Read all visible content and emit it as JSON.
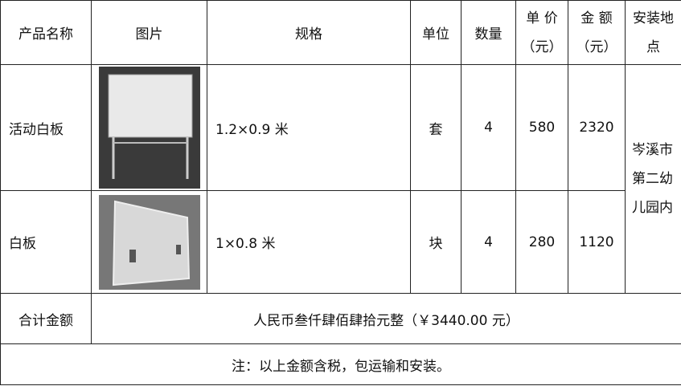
{
  "table": {
    "header": [
      [
        "产品名称"
      ],
      [
        "图片"
      ],
      [
        "规格"
      ],
      [
        "单位"
      ],
      [
        "数量"
      ],
      [
        "单 价",
        "（元）"
      ],
      [
        "金 额",
        "（元）"
      ],
      [
        "安装地",
        "点"
      ]
    ],
    "rows": [
      {
        "name": "活动白板",
        "spec": "1.2×0.9 米",
        "unit": "套",
        "qty": 4,
        "price": 580,
        "amount": 2320
      },
      {
        "name": "白板",
        "spec": "1×0.8 米",
        "unit": "块",
        "qty": 4,
        "price": 280,
        "amount": 1120
      }
    ],
    "location": [
      "岑溪市",
      "第二幼",
      "儿园内"
    ],
    "total_label": "合计金额",
    "total_value": "人民币叁仟肆佰肆拾元整（￥3440.00 元）",
    "note": "注：以上金额含税，包运输和安装。"
  }
}
